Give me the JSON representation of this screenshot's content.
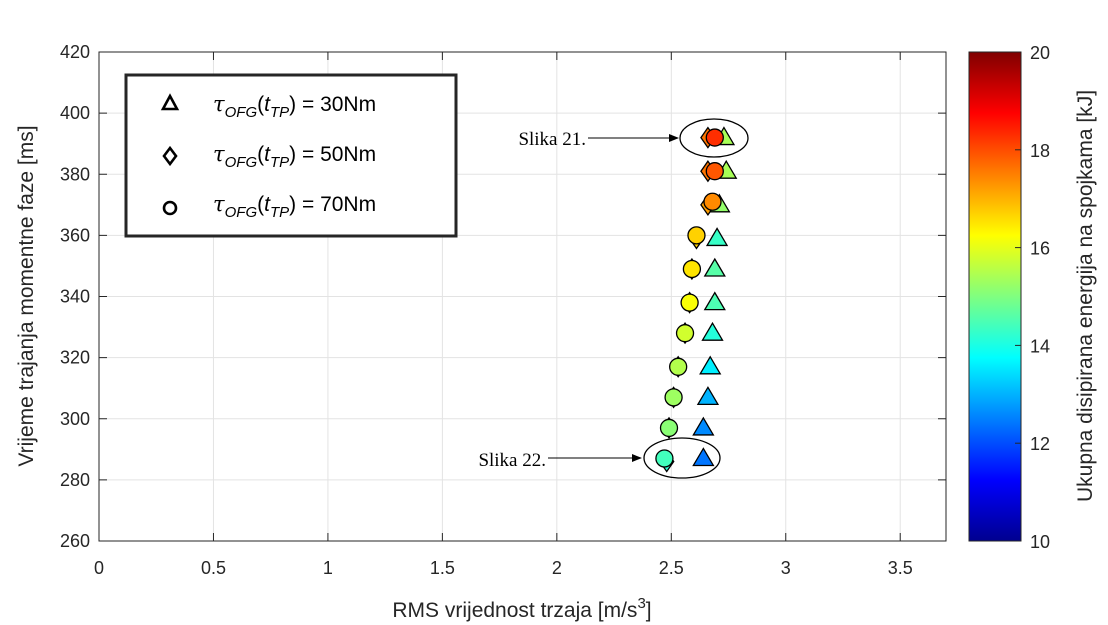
{
  "chart_data": {
    "type": "scatter",
    "xlabel": "RMS vrijednost trzaja [m/s",
    "xlabel_sup": "3",
    "xlabel_end": "]",
    "ylabel": "Vrijeme trajanja momentne faze [ms]",
    "colorbar_label": "Ukupna disipirana energija na spojkama [kJ]",
    "xlim": [
      0,
      3.7
    ],
    "ylim": [
      260,
      420
    ],
    "clim": [
      10,
      20
    ],
    "colormap": "jet",
    "grid": true,
    "legend_placement": "top-left",
    "x_ticks": [
      "0",
      "0.5",
      "1",
      "1.5",
      "2",
      "2.5",
      "3",
      "3.5"
    ],
    "y_ticks": [
      "260",
      "280",
      "300",
      "320",
      "340",
      "360",
      "380",
      "400",
      "420"
    ],
    "colorbar_ticks": [
      "10",
      "12",
      "14",
      "16",
      "18",
      "20"
    ],
    "series": [
      {
        "name": "τOFG(tTP) = 30Nm",
        "legend_parts": [
          "τ",
          "OFG",
          "(",
          "t",
          "TP",
          ") = 30Nm"
        ],
        "marker": "triangle",
        "points": [
          {
            "x": 2.64,
            "y": 287,
            "c": 12.4
          },
          {
            "x": 2.64,
            "y": 297,
            "c": 12.6
          },
          {
            "x": 2.66,
            "y": 307,
            "c": 13.0
          },
          {
            "x": 2.67,
            "y": 317,
            "c": 13.6
          },
          {
            "x": 2.68,
            "y": 328,
            "c": 14.1
          },
          {
            "x": 2.69,
            "y": 338,
            "c": 14.5
          },
          {
            "x": 2.69,
            "y": 349,
            "c": 14.6
          },
          {
            "x": 2.7,
            "y": 359,
            "c": 14.3
          },
          {
            "x": 2.71,
            "y": 370,
            "c": 15.2
          },
          {
            "x": 2.74,
            "y": 381,
            "c": 15.4
          },
          {
            "x": 2.73,
            "y": 392,
            "c": 15.4
          }
        ]
      },
      {
        "name": "τOFG(tTP) = 50Nm",
        "legend_parts": [
          "τ",
          "OFG",
          "(",
          "t",
          "TP",
          ") = 50Nm"
        ],
        "marker": "diamond",
        "points": [
          {
            "x": 2.48,
            "y": 286,
            "c": 14.2
          },
          {
            "x": 2.49,
            "y": 297,
            "c": 15.0
          },
          {
            "x": 2.51,
            "y": 307,
            "c": 15.2
          },
          {
            "x": 2.53,
            "y": 317,
            "c": 15.4
          },
          {
            "x": 2.56,
            "y": 328,
            "c": 15.6
          },
          {
            "x": 2.58,
            "y": 338,
            "c": 16.0
          },
          {
            "x": 2.59,
            "y": 349,
            "c": 16.4
          },
          {
            "x": 2.61,
            "y": 359,
            "c": 16.7
          },
          {
            "x": 2.66,
            "y": 370,
            "c": 17.2
          },
          {
            "x": 2.66,
            "y": 381,
            "c": 17.6
          },
          {
            "x": 2.66,
            "y": 392,
            "c": 17.6
          }
        ]
      },
      {
        "name": "τOFG(tTP) = 70Nm",
        "legend_parts": [
          "τ",
          "OFG",
          "(",
          "t",
          "TP",
          ") = 70Nm"
        ],
        "marker": "circle",
        "points": [
          {
            "x": 2.47,
            "y": 287,
            "c": 14.4
          },
          {
            "x": 2.49,
            "y": 297,
            "c": 15.1
          },
          {
            "x": 2.51,
            "y": 307,
            "c": 15.3
          },
          {
            "x": 2.53,
            "y": 317,
            "c": 15.5
          },
          {
            "x": 2.56,
            "y": 328,
            "c": 15.8
          },
          {
            "x": 2.58,
            "y": 338,
            "c": 16.2
          },
          {
            "x": 2.59,
            "y": 349,
            "c": 16.5
          },
          {
            "x": 2.61,
            "y": 360,
            "c": 16.7
          },
          {
            "x": 2.68,
            "y": 371,
            "c": 17.4
          },
          {
            "x": 2.69,
            "y": 381,
            "c": 17.9
          },
          {
            "x": 2.69,
            "y": 392,
            "c": 18.3
          }
        ]
      }
    ],
    "annotations": [
      {
        "text": "Slika 21.",
        "target_x": 2.69,
        "target_y": 392
      },
      {
        "text": "Slika 22.",
        "target_x": 2.55,
        "target_y": 287
      }
    ]
  }
}
